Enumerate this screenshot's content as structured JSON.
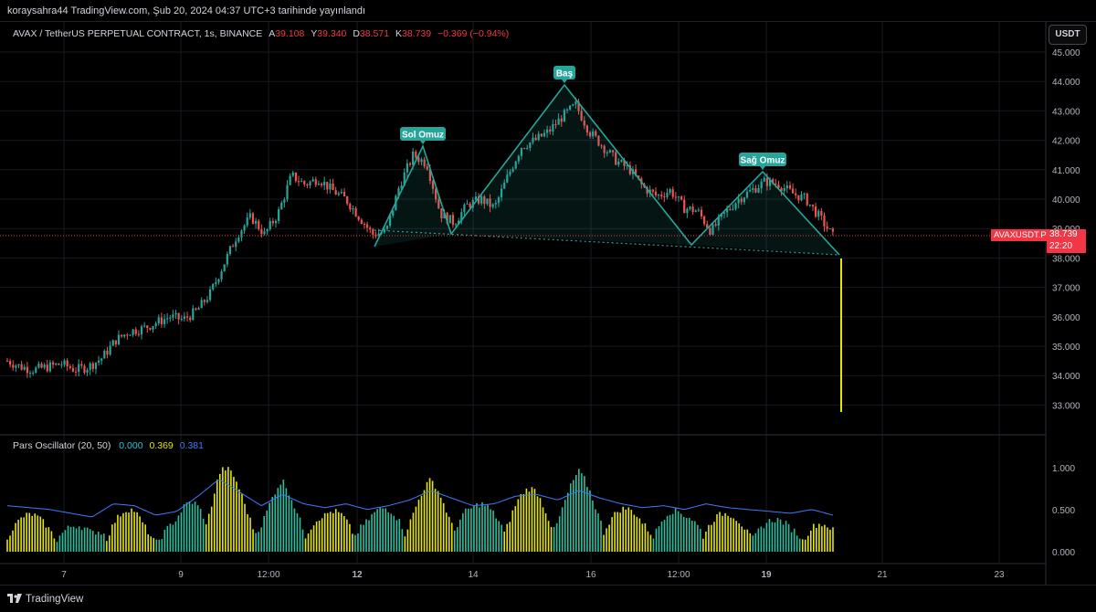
{
  "header": {
    "publish_info": "koraysahra44 TradingView.com, Şub 20, 2024 04:37 UTC+3 tarihinde yayınlandı"
  },
  "legend": {
    "symbol": "AVAX / TetherUS PERPETUAL CONTRACT, 1s, BINANCE",
    "open_label": "A",
    "open": "39.108",
    "high_label": "Y",
    "high": "39.340",
    "low_label": "D",
    "low": "38.571",
    "close_label": "K",
    "close": "38.739",
    "change": "−0.369 (−0.94%)"
  },
  "currency_button": "USDT",
  "price_axis": [
    "45.000",
    "44.000",
    "43.000",
    "42.000",
    "41.000",
    "40.000",
    "39.000",
    "38.000",
    "37.000",
    "36.000",
    "35.000",
    "34.000",
    "33.000"
  ],
  "osc_axis": [
    "1.000",
    "0.500",
    "0.000"
  ],
  "time_axis": [
    "7",
    "9",
    "12:00",
    "12",
    "14",
    "16",
    "12:00",
    "19",
    "21",
    "23"
  ],
  "last_price": {
    "ticker": "AVAXUSDT.P",
    "price": "38.739",
    "countdown": "22:20"
  },
  "pattern_labels": {
    "left_shoulder": "Sol Omuz",
    "head": "Baş",
    "right_shoulder": "Sağ Omuz"
  },
  "oscillator": {
    "name": "Pars Oscillator (20, 50)",
    "v1": "0.000",
    "v2": "0.369",
    "v3": "0.381"
  },
  "footer": {
    "brand": "TradingView"
  },
  "colors": {
    "up": "#26a69a",
    "down": "#ef5350",
    "pattern": "#26a69a",
    "projection": "#e6e600",
    "osc_line": "#3d7bff"
  },
  "chart_data": {
    "type": "candlestick",
    "title": "AVAX / TetherUS PERPETUAL CONTRACT, 1s, BINANCE",
    "ylim": [
      32.5,
      45.0
    ],
    "x": [
      "7",
      "9",
      "12:00",
      "12",
      "14",
      "16",
      "12:00",
      "19",
      "21",
      "23"
    ],
    "close_path": [
      34.5,
      34.3,
      34.2,
      34.3,
      34.4,
      34.2,
      34.3,
      34.6,
      35.2,
      35.5,
      35.6,
      35.8,
      36.0,
      35.9,
      36.2,
      36.8,
      37.8,
      38.8,
      39.4,
      38.8,
      39.5,
      40.8,
      40.5,
      40.7,
      40.3,
      40.0,
      39.4,
      38.8,
      38.9,
      40.5,
      41.5,
      41.2,
      39.5,
      39.2,
      39.8,
      40.0,
      39.7,
      40.8,
      41.8,
      42.0,
      42.3,
      42.8,
      43.2,
      42.3,
      41.8,
      41.3,
      41.0,
      40.4,
      40.1,
      40.3,
      39.7,
      39.6,
      38.9,
      39.5,
      40.0,
      40.3,
      40.6,
      40.5,
      40.2,
      40.0,
      39.4,
      38.74
    ]
  }
}
